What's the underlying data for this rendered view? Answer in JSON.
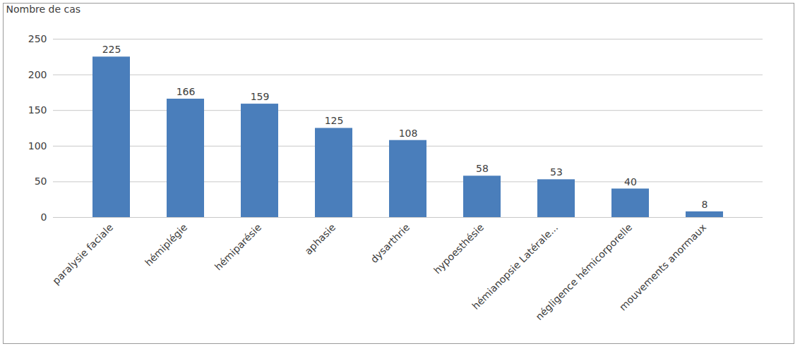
{
  "chart_data": {
    "type": "bar",
    "y_label": "Nombre de cas",
    "categories": [
      "paralysie faciale",
      "hémiplégie",
      "hémiparésie",
      "aphasie",
      "dysarthrie",
      "hypoesthésie",
      "hémianopsie Latérale...",
      "négligence hémicorporelle",
      "mouvements anormaux"
    ],
    "values": [
      225,
      166,
      159,
      125,
      108,
      58,
      53,
      40,
      8
    ],
    "color": "#4a7ebb",
    "ylim": [
      0,
      250
    ],
    "yticks": [
      0,
      50,
      100,
      150,
      200,
      250
    ],
    "grid": true,
    "data_labels": true
  }
}
